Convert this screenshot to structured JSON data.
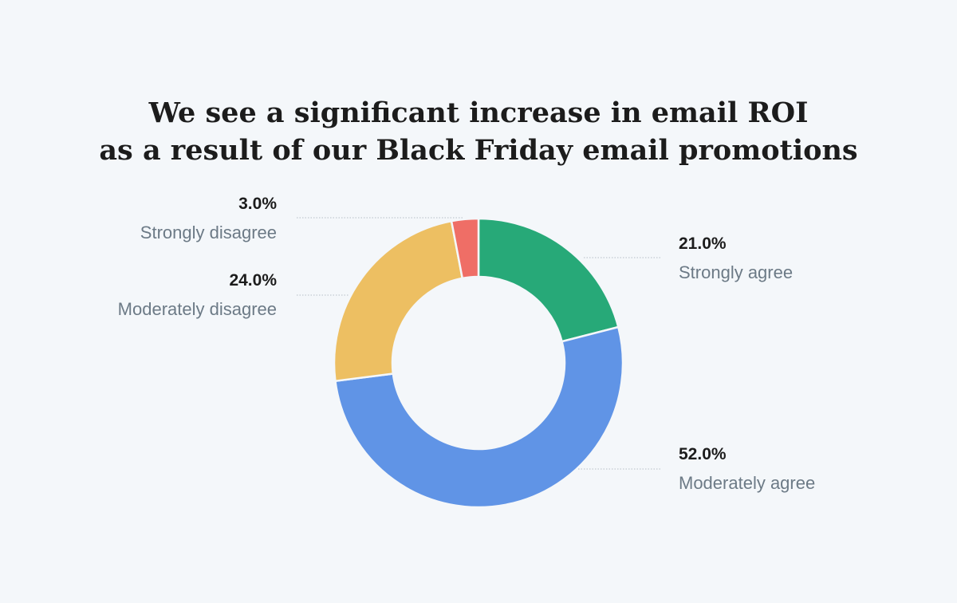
{
  "title": {
    "line1": "We see a significant increase in email ROI",
    "line2": "as a result of our Black Friday email promotions"
  },
  "chart_data": {
    "type": "pie",
    "donut": true,
    "title": "We see a significant increase in email ROI as a result of our Black Friday email promotions",
    "slices": [
      {
        "label": "Strongly agree",
        "value": 21.0,
        "value_label": "21.0%",
        "color": "#27a978"
      },
      {
        "label": "Moderately agree",
        "value": 52.0,
        "value_label": "52.0%",
        "color": "#6094e6"
      },
      {
        "label": "Moderately disagree",
        "value": 24.0,
        "value_label": "24.0%",
        "color": "#edbf62"
      },
      {
        "label": "Strongly disagree",
        "value": 3.0,
        "value_label": "3.0%",
        "color": "#ef6e66"
      }
    ],
    "start_angle": "12 o'clock",
    "direction": "clockwise",
    "legend": "none"
  },
  "colors": {
    "background": "#f4f7fa",
    "leader_line": "#c2c9d0",
    "percent_text": "#1c1c1c",
    "label_text": "#6c7a86"
  }
}
